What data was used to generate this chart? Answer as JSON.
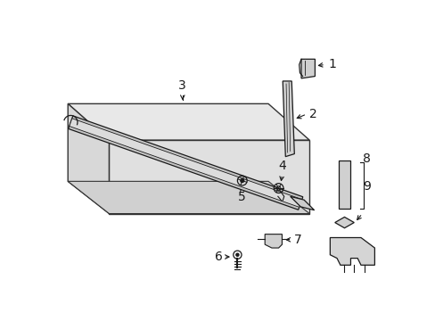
{
  "background_color": "#ffffff",
  "line_color": "#1a1a1a",
  "panel_fill": "#e8e8e8",
  "panel_stroke": "#333333",
  "part_fill": "#d5d5d5",
  "part_fill2": "#c0c0c0",
  "strip_fill": "#b8b8b8"
}
